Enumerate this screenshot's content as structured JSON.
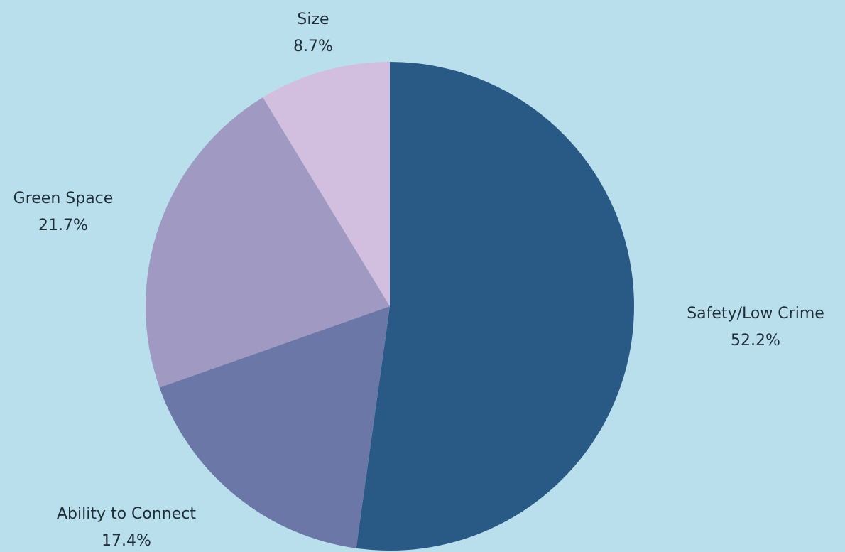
{
  "chart_data": {
    "type": "pie",
    "title": "",
    "slices": [
      {
        "label": "Safety/Low Crime",
        "value": 52.2,
        "value_text": "52.2%",
        "color": "#295a86"
      },
      {
        "label": "Ability to Connect",
        "value": 17.4,
        "value_text": "17.4%",
        "color": "#6b77a6"
      },
      {
        "label": "Green Space",
        "value": 21.7,
        "value_text": "21.7%",
        "color": "#a09ac3"
      },
      {
        "label": "Size",
        "value": 8.7,
        "value_text": "8.7%",
        "color": "#d2bfe0"
      }
    ],
    "start_angle": "12 o'clock",
    "direction": "clockwise",
    "legend": "none",
    "labels": "outside"
  },
  "background_color": "#b9dfed"
}
